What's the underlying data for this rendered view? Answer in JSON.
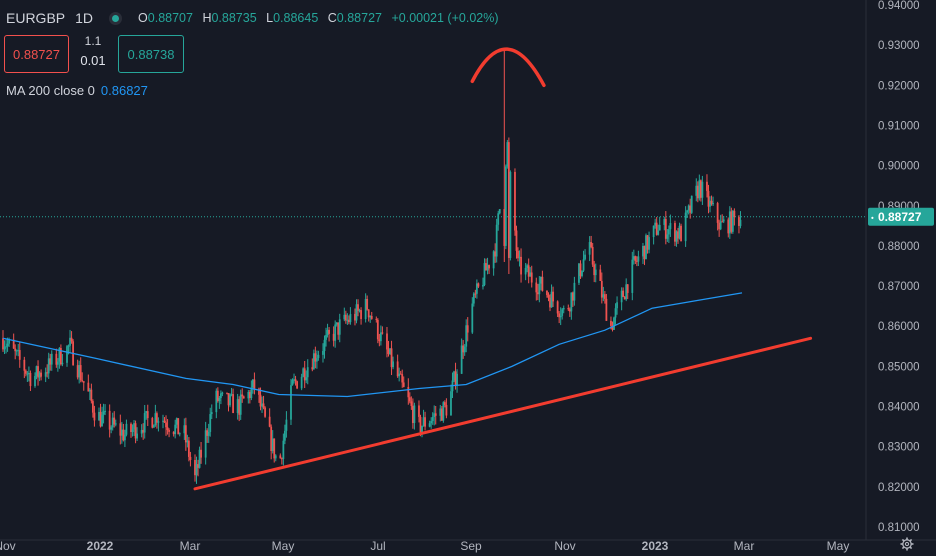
{
  "header": {
    "symbol": "EURGBP",
    "interval": "1D",
    "ohlc": {
      "o_label": "O",
      "o": "0.88707",
      "h_label": "H",
      "h": "0.88735",
      "l_label": "L",
      "l": "0.88645",
      "c_label": "C",
      "c": "0.88727",
      "change": "+0.00021 (+0.02%)"
    }
  },
  "trade": {
    "sell_price": "0.88727",
    "spread": "1.1",
    "quantity": "0.01",
    "buy_price": "0.88738"
  },
  "indicator": {
    "label": "MA 200 close 0",
    "value": "0.86827"
  },
  "colors": {
    "background": "#161a25",
    "up": "#26a69a",
    "down": "#ef5350",
    "ma": "#2196f3",
    "drawing": "#f23c2f",
    "grid": "#232733",
    "text": "#d1d4dc"
  },
  "icons": [
    "indicator-status-icon",
    "settings-icon"
  ],
  "chart_data": {
    "type": "candlestick",
    "title": "",
    "ylim": [
      0.81,
      0.94
    ],
    "y_ticks": [
      "0.94000",
      "0.93000",
      "0.92000",
      "0.91000",
      "0.90000",
      "0.89000",
      "0.88000",
      "0.87000",
      "0.86000",
      "0.85000",
      "0.84000",
      "0.83000",
      "0.82000",
      "0.81000"
    ],
    "x_ticks": [
      "Nov",
      "2022",
      "Mar",
      "May",
      "Jul",
      "Sep",
      "Nov",
      "2023",
      "Mar",
      "May"
    ],
    "last_price_label": "0.88727",
    "last_price": 0.88727,
    "close_path": [
      [
        "2021-11-01",
        0.857
      ],
      [
        "2021-11-20",
        0.847
      ],
      [
        "2021-12-01",
        0.85
      ],
      [
        "2021-12-15",
        0.855
      ],
      [
        "2022-01-01",
        0.838
      ],
      [
        "2022-01-20",
        0.833
      ],
      [
        "2022-02-10",
        0.838
      ],
      [
        "2022-02-28",
        0.833
      ],
      [
        "2022-03-07",
        0.822
      ],
      [
        "2022-03-20",
        0.842
      ],
      [
        "2022-04-05",
        0.84
      ],
      [
        "2022-04-15",
        0.845
      ],
      [
        "2022-05-01",
        0.825
      ],
      [
        "2022-05-10",
        0.845
      ],
      [
        "2022-05-25",
        0.853
      ],
      [
        "2022-06-10",
        0.86
      ],
      [
        "2022-06-28",
        0.865
      ],
      [
        "2022-07-15",
        0.85
      ],
      [
        "2022-08-01",
        0.835
      ],
      [
        "2022-08-20",
        0.84
      ],
      [
        "2022-09-05",
        0.865
      ],
      [
        "2022-09-20",
        0.88
      ],
      [
        "2022-09-28",
        0.905
      ],
      [
        "2022-10-05",
        0.875
      ],
      [
        "2022-10-20",
        0.87
      ],
      [
        "2022-11-05",
        0.863
      ],
      [
        "2022-11-20",
        0.88
      ],
      [
        "2022-12-05",
        0.86
      ],
      [
        "2022-12-20",
        0.875
      ],
      [
        "2023-01-05",
        0.885
      ],
      [
        "2023-01-20",
        0.883
      ],
      [
        "2023-02-01",
        0.895
      ],
      [
        "2023-02-15",
        0.885
      ],
      [
        "2023-02-28",
        0.887
      ]
    ],
    "spikes": [
      {
        "date": "2022-09-26",
        "high": 0.929,
        "low": 0.876
      },
      {
        "date": "2022-09-29",
        "high": 0.907,
        "low": 0.873
      }
    ],
    "ma_200": [
      [
        "2021-11-01",
        0.857
      ],
      [
        "2022-01-01",
        0.852
      ],
      [
        "2022-03-01",
        0.847
      ],
      [
        "2022-04-01",
        0.8455
      ],
      [
        "2022-05-01",
        0.843
      ],
      [
        "2022-06-15",
        0.8425
      ],
      [
        "2022-08-01",
        0.8445
      ],
      [
        "2022-09-01",
        0.8455
      ],
      [
        "2022-10-01",
        0.85
      ],
      [
        "2022-11-01",
        0.8555
      ],
      [
        "2022-12-01",
        0.859
      ],
      [
        "2023-01-01",
        0.8645
      ],
      [
        "2023-02-01",
        0.8665
      ],
      [
        "2023-03-01",
        0.8683
      ]
    ],
    "drawings": {
      "trendline": [
        [
          "2022-03-07",
          0.8195
        ],
        [
          "2023-04-15",
          0.857
        ]
      ],
      "arc": {
        "start": [
          "2022-09-05",
          0.921
        ],
        "apex": [
          "2022-09-28",
          0.929
        ],
        "end": [
          "2022-10-22",
          0.92
        ]
      }
    },
    "grid": false,
    "legend": "none"
  }
}
